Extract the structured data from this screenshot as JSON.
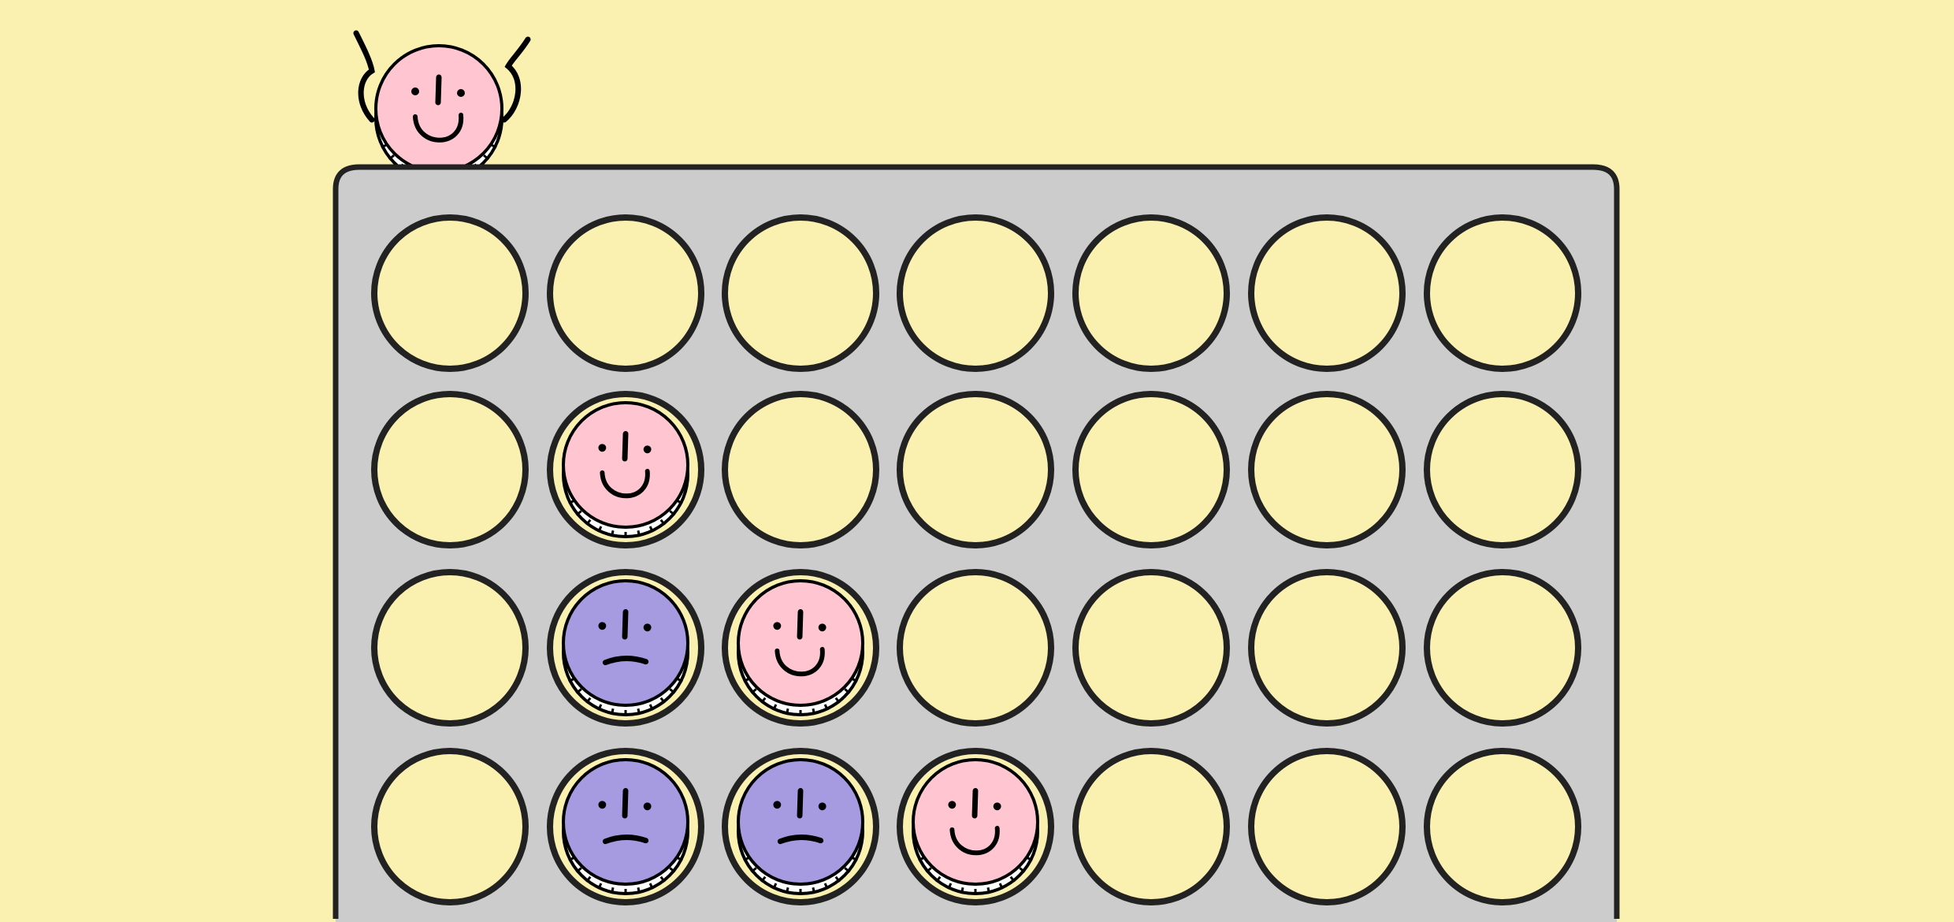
{
  "colors": {
    "background": "#FAF0B0",
    "board": "#CCCCCC",
    "hole": "#FAF0B0",
    "outline": "#222222",
    "player_pink": "#FFC6D1",
    "player_purple": "#A69AE0"
  },
  "current_turn": {
    "player": "pink",
    "face": "happy"
  },
  "players": {
    "pink": {
      "face": "happy"
    },
    "purple": {
      "face": "sad"
    }
  },
  "board": {
    "columns": 7,
    "visible_rows": [
      [
        null,
        null,
        null,
        null,
        null,
        null,
        null
      ],
      [
        null,
        "pink",
        null,
        null,
        null,
        null,
        null
      ],
      [
        null,
        "purple",
        "pink",
        null,
        null,
        null,
        null
      ],
      [
        null,
        "purple",
        "purple",
        "pink",
        null,
        null,
        null
      ],
      [
        null,
        null,
        null,
        null,
        null,
        null,
        null
      ]
    ]
  }
}
